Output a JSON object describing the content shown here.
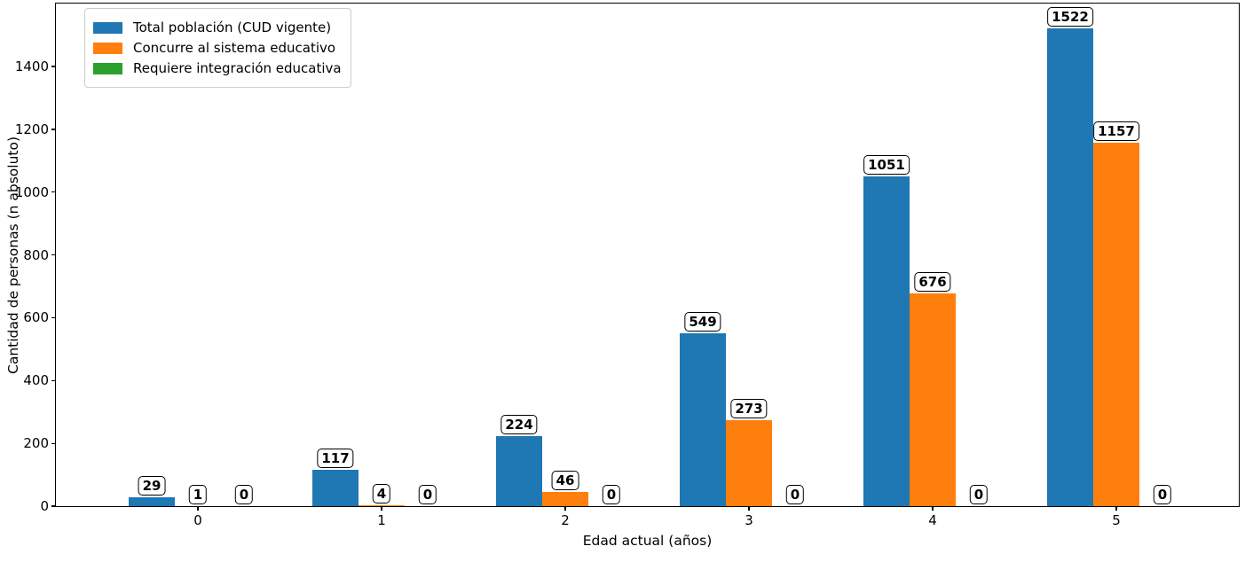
{
  "chart_data": {
    "type": "bar",
    "title": "",
    "xlabel": "Edad actual (años)",
    "ylabel": "Cantidad de personas (n absoluto)",
    "categories": [
      "0",
      "1",
      "2",
      "3",
      "4",
      "5"
    ],
    "series": [
      {
        "name": "Total población (CUD vigente)",
        "color": "#1f77b4",
        "values": [
          29,
          117,
          224,
          549,
          1051,
          1522
        ]
      },
      {
        "name": "Concurre al sistema educativo",
        "color": "#ff7f0e",
        "values": [
          1,
          4,
          46,
          273,
          676,
          1157
        ]
      },
      {
        "name": "Requiere integración educativa",
        "color": "#2ca02c",
        "values": [
          0,
          0,
          0,
          0,
          0,
          0
        ]
      }
    ],
    "bar_value_labels": [
      [
        "29",
        "1",
        "0"
      ],
      [
        "117",
        "4",
        "0"
      ],
      [
        "224",
        "46",
        "0"
      ],
      [
        "549",
        "273",
        "0"
      ],
      [
        "1051",
        "676",
        "0"
      ],
      [
        "1522",
        "1157",
        "0"
      ]
    ],
    "yticks": [
      0,
      200,
      400,
      600,
      800,
      1000,
      1200,
      1400
    ],
    "ylim": [
      0,
      1600
    ],
    "grid": false,
    "legend_position": "upper left",
    "frame_color": "#000000"
  }
}
